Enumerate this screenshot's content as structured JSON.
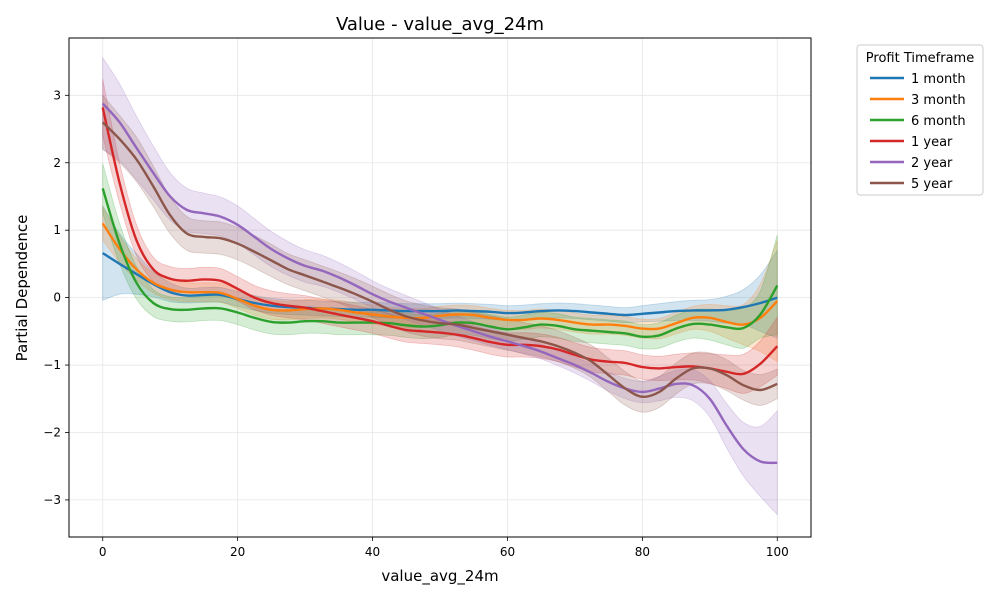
{
  "chart_data": {
    "type": "line",
    "title": "Value - value_avg_24m",
    "xlabel": "value_avg_24m",
    "ylabel": "Partial Dependence",
    "xlim": [
      -5,
      105
    ],
    "ylim": [
      -3.55,
      3.85
    ],
    "xticks": [
      0,
      20,
      40,
      60,
      80,
      100
    ],
    "yticks": [
      -3,
      -2,
      -1,
      0,
      1,
      2,
      3
    ],
    "grid": true,
    "legend": {
      "title": "Profit Timeframe",
      "position": "outside-right"
    },
    "x": [
      0,
      2.5,
      5,
      7.5,
      10,
      12.5,
      15,
      17.5,
      20,
      22.5,
      25,
      27.5,
      30,
      32.5,
      35,
      37.5,
      40,
      42.5,
      45,
      47.5,
      50,
      52.5,
      55,
      57.5,
      60,
      62.5,
      65,
      67.5,
      70,
      72.5,
      75,
      77.5,
      80,
      82.5,
      85,
      87.5,
      90,
      92.5,
      95,
      97.5,
      100
    ],
    "series": [
      {
        "name": "1 month",
        "color": "#1f77b4",
        "values": [
          0.66,
          0.5,
          0.35,
          0.2,
          0.08,
          0.03,
          0.04,
          0.04,
          -0.02,
          -0.08,
          -0.12,
          -0.14,
          -0.15,
          -0.16,
          -0.17,
          -0.18,
          -0.18,
          -0.19,
          -0.2,
          -0.2,
          -0.2,
          -0.19,
          -0.2,
          -0.21,
          -0.23,
          -0.22,
          -0.2,
          -0.19,
          -0.2,
          -0.22,
          -0.24,
          -0.26,
          -0.24,
          -0.22,
          -0.2,
          -0.19,
          -0.19,
          -0.18,
          -0.14,
          -0.08,
          0.0
        ],
        "lower": [
          -0.04,
          0.05,
          0.05,
          0.01,
          -0.06,
          -0.08,
          -0.07,
          -0.07,
          -0.13,
          -0.19,
          -0.23,
          -0.25,
          -0.26,
          -0.27,
          -0.28,
          -0.29,
          -0.29,
          -0.3,
          -0.31,
          -0.31,
          -0.31,
          -0.3,
          -0.31,
          -0.32,
          -0.34,
          -0.33,
          -0.31,
          -0.3,
          -0.31,
          -0.33,
          -0.35,
          -0.37,
          -0.36,
          -0.35,
          -0.34,
          -0.34,
          -0.35,
          -0.38,
          -0.4,
          -0.5,
          -0.6
        ],
        "upper": [
          1.36,
          0.95,
          0.65,
          0.39,
          0.22,
          0.14,
          0.15,
          0.15,
          0.09,
          0.03,
          -0.01,
          -0.03,
          -0.04,
          -0.05,
          -0.06,
          -0.07,
          -0.07,
          -0.08,
          -0.09,
          -0.09,
          -0.09,
          -0.08,
          -0.09,
          -0.1,
          -0.12,
          -0.11,
          -0.09,
          -0.08,
          -0.09,
          -0.11,
          -0.13,
          -0.15,
          -0.12,
          -0.09,
          -0.06,
          -0.04,
          -0.03,
          0.02,
          0.12,
          0.34,
          0.7
        ]
      },
      {
        "name": "3 month",
        "color": "#ff7f0e",
        "values": [
          1.1,
          0.72,
          0.42,
          0.22,
          0.12,
          0.08,
          0.08,
          0.07,
          -0.02,
          -0.12,
          -0.18,
          -0.19,
          -0.17,
          -0.16,
          -0.18,
          -0.22,
          -0.25,
          -0.28,
          -0.3,
          -0.3,
          -0.27,
          -0.25,
          -0.26,
          -0.3,
          -0.33,
          -0.33,
          -0.31,
          -0.33,
          -0.37,
          -0.4,
          -0.4,
          -0.42,
          -0.46,
          -0.46,
          -0.38,
          -0.3,
          -0.3,
          -0.36,
          -0.4,
          -0.3,
          -0.05
        ],
        "lower": [
          0.85,
          0.52,
          0.26,
          0.07,
          -0.03,
          -0.06,
          -0.06,
          -0.07,
          -0.16,
          -0.26,
          -0.32,
          -0.33,
          -0.31,
          -0.3,
          -0.32,
          -0.36,
          -0.39,
          -0.42,
          -0.44,
          -0.44,
          -0.41,
          -0.39,
          -0.4,
          -0.44,
          -0.47,
          -0.47,
          -0.45,
          -0.47,
          -0.51,
          -0.54,
          -0.54,
          -0.56,
          -0.6,
          -0.61,
          -0.54,
          -0.47,
          -0.5,
          -0.6,
          -0.7,
          -0.8,
          -0.95
        ],
        "upper": [
          1.35,
          0.92,
          0.58,
          0.37,
          0.27,
          0.22,
          0.22,
          0.21,
          0.12,
          0.02,
          -0.04,
          -0.05,
          -0.03,
          -0.02,
          -0.04,
          -0.08,
          -0.11,
          -0.14,
          -0.16,
          -0.16,
          -0.13,
          -0.11,
          -0.12,
          -0.16,
          -0.19,
          -0.19,
          -0.17,
          -0.19,
          -0.23,
          -0.26,
          -0.26,
          -0.28,
          -0.32,
          -0.31,
          -0.22,
          -0.13,
          -0.1,
          -0.12,
          -0.1,
          0.2,
          0.85
        ]
      },
      {
        "name": "6 month",
        "color": "#2ca02c",
        "values": [
          1.62,
          0.8,
          0.22,
          -0.08,
          -0.17,
          -0.18,
          -0.16,
          -0.16,
          -0.22,
          -0.3,
          -0.36,
          -0.37,
          -0.35,
          -0.35,
          -0.37,
          -0.37,
          -0.37,
          -0.38,
          -0.41,
          -0.43,
          -0.41,
          -0.37,
          -0.38,
          -0.43,
          -0.47,
          -0.44,
          -0.4,
          -0.42,
          -0.47,
          -0.49,
          -0.51,
          -0.53,
          -0.58,
          -0.56,
          -0.46,
          -0.39,
          -0.4,
          -0.44,
          -0.45,
          -0.25,
          0.18
        ],
        "lower": [
          1.25,
          0.5,
          -0.02,
          -0.28,
          -0.35,
          -0.36,
          -0.34,
          -0.34,
          -0.4,
          -0.48,
          -0.54,
          -0.55,
          -0.53,
          -0.53,
          -0.55,
          -0.55,
          -0.55,
          -0.56,
          -0.59,
          -0.61,
          -0.59,
          -0.55,
          -0.56,
          -0.61,
          -0.65,
          -0.62,
          -0.58,
          -0.6,
          -0.65,
          -0.67,
          -0.69,
          -0.71,
          -0.76,
          -0.75,
          -0.66,
          -0.6,
          -0.63,
          -0.7,
          -0.75,
          -0.6,
          -0.55
        ],
        "upper": [
          1.99,
          1.1,
          0.46,
          0.12,
          0.01,
          0.0,
          0.02,
          0.02,
          -0.04,
          -0.12,
          -0.18,
          -0.19,
          -0.17,
          -0.17,
          -0.19,
          -0.19,
          -0.19,
          -0.2,
          -0.23,
          -0.25,
          -0.23,
          -0.19,
          -0.2,
          -0.25,
          -0.29,
          -0.26,
          -0.22,
          -0.24,
          -0.29,
          -0.31,
          -0.33,
          -0.35,
          -0.4,
          -0.37,
          -0.26,
          -0.18,
          -0.17,
          -0.18,
          -0.15,
          0.1,
          0.93
        ]
      },
      {
        "name": "1 year",
        "color": "#d62728",
        "values": [
          2.82,
          1.7,
          0.85,
          0.42,
          0.28,
          0.25,
          0.27,
          0.25,
          0.13,
          0.0,
          -0.08,
          -0.12,
          -0.15,
          -0.2,
          -0.25,
          -0.3,
          -0.35,
          -0.42,
          -0.48,
          -0.5,
          -0.52,
          -0.55,
          -0.6,
          -0.66,
          -0.7,
          -0.7,
          -0.72,
          -0.77,
          -0.85,
          -0.92,
          -0.95,
          -0.97,
          -1.03,
          -1.05,
          -1.03,
          -1.02,
          -1.05,
          -1.1,
          -1.13,
          -0.98,
          -0.72
        ],
        "lower": [
          2.4,
          1.4,
          0.62,
          0.24,
          0.1,
          0.07,
          0.09,
          0.07,
          -0.05,
          -0.18,
          -0.26,
          -0.3,
          -0.33,
          -0.38,
          -0.43,
          -0.48,
          -0.53,
          -0.6,
          -0.66,
          -0.68,
          -0.7,
          -0.73,
          -0.78,
          -0.84,
          -0.88,
          -0.88,
          -0.9,
          -0.95,
          -1.03,
          -1.1,
          -1.13,
          -1.15,
          -1.21,
          -1.23,
          -1.22,
          -1.22,
          -1.27,
          -1.35,
          -1.42,
          -1.32,
          -1.15
        ],
        "upper": [
          3.24,
          2.0,
          1.08,
          0.6,
          0.46,
          0.43,
          0.45,
          0.43,
          0.31,
          0.18,
          0.1,
          0.06,
          0.03,
          -0.02,
          -0.07,
          -0.12,
          -0.17,
          -0.24,
          -0.3,
          -0.32,
          -0.34,
          -0.37,
          -0.42,
          -0.48,
          -0.52,
          -0.52,
          -0.54,
          -0.59,
          -0.67,
          -0.74,
          -0.77,
          -0.79,
          -0.85,
          -0.87,
          -0.84,
          -0.82,
          -0.83,
          -0.85,
          -0.84,
          -0.64,
          -0.29
        ]
      },
      {
        "name": "2 year",
        "color": "#9467bd",
        "values": [
          2.88,
          2.6,
          2.22,
          1.85,
          1.5,
          1.3,
          1.25,
          1.2,
          1.08,
          0.9,
          0.72,
          0.58,
          0.47,
          0.4,
          0.3,
          0.18,
          0.05,
          -0.06,
          -0.15,
          -0.24,
          -0.33,
          -0.42,
          -0.5,
          -0.58,
          -0.65,
          -0.72,
          -0.8,
          -0.9,
          -1.0,
          -1.12,
          -1.25,
          -1.35,
          -1.4,
          -1.35,
          -1.28,
          -1.3,
          -1.5,
          -1.9,
          -2.25,
          -2.43,
          -2.45
        ],
        "lower": [
          2.2,
          2.03,
          1.75,
          1.45,
          1.15,
          0.98,
          0.95,
          0.91,
          0.8,
          0.63,
          0.46,
          0.33,
          0.23,
          0.17,
          0.08,
          -0.03,
          -0.15,
          -0.25,
          -0.33,
          -0.41,
          -0.49,
          -0.57,
          -0.64,
          -0.71,
          -0.77,
          -0.84,
          -0.91,
          -1.01,
          -1.12,
          -1.25,
          -1.39,
          -1.5,
          -1.56,
          -1.53,
          -1.48,
          -1.53,
          -1.77,
          -2.23,
          -2.65,
          -2.95,
          -3.22
        ],
        "upper": [
          3.56,
          3.17,
          2.69,
          2.25,
          1.85,
          1.62,
          1.55,
          1.49,
          1.36,
          1.17,
          0.98,
          0.83,
          0.71,
          0.63,
          0.52,
          0.39,
          0.25,
          0.13,
          0.03,
          -0.07,
          -0.17,
          -0.27,
          -0.36,
          -0.45,
          -0.53,
          -0.6,
          -0.69,
          -0.79,
          -0.88,
          -0.99,
          -1.11,
          -1.2,
          -1.24,
          -1.17,
          -1.08,
          -1.07,
          -1.23,
          -1.57,
          -1.85,
          -1.91,
          -1.68
        ]
      },
      {
        "name": "5 year",
        "color": "#8c564b",
        "values": [
          2.6,
          2.35,
          2.05,
          1.65,
          1.22,
          0.95,
          0.9,
          0.88,
          0.8,
          0.68,
          0.55,
          0.42,
          0.33,
          0.24,
          0.15,
          0.05,
          -0.06,
          -0.18,
          -0.28,
          -0.34,
          -0.38,
          -0.4,
          -0.45,
          -0.5,
          -0.55,
          -0.6,
          -0.65,
          -0.72,
          -0.82,
          -0.95,
          -1.15,
          -1.35,
          -1.47,
          -1.4,
          -1.2,
          -1.05,
          -1.05,
          -1.15,
          -1.3,
          -1.37,
          -1.28
        ],
        "lower": [
          2.2,
          2.0,
          1.72,
          1.35,
          0.95,
          0.7,
          0.66,
          0.64,
          0.56,
          0.44,
          0.31,
          0.19,
          0.1,
          0.01,
          -0.08,
          -0.18,
          -0.29,
          -0.41,
          -0.51,
          -0.57,
          -0.61,
          -0.63,
          -0.68,
          -0.73,
          -0.78,
          -0.83,
          -0.88,
          -0.95,
          -1.05,
          -1.19,
          -1.4,
          -1.6,
          -1.7,
          -1.63,
          -1.43,
          -1.28,
          -1.28,
          -1.38,
          -1.52,
          -1.6,
          -1.5
        ],
        "upper": [
          3.0,
          2.7,
          2.38,
          1.95,
          1.49,
          1.2,
          1.14,
          1.12,
          1.04,
          0.92,
          0.79,
          0.65,
          0.56,
          0.47,
          0.38,
          0.28,
          0.17,
          0.05,
          -0.05,
          -0.11,
          -0.15,
          -0.17,
          -0.22,
          -0.27,
          -0.32,
          -0.37,
          -0.42,
          -0.49,
          -0.59,
          -0.71,
          -0.9,
          -1.1,
          -1.24,
          -1.17,
          -0.97,
          -0.82,
          -0.82,
          -0.92,
          -1.08,
          -1.14,
          -1.06
        ]
      }
    ]
  }
}
